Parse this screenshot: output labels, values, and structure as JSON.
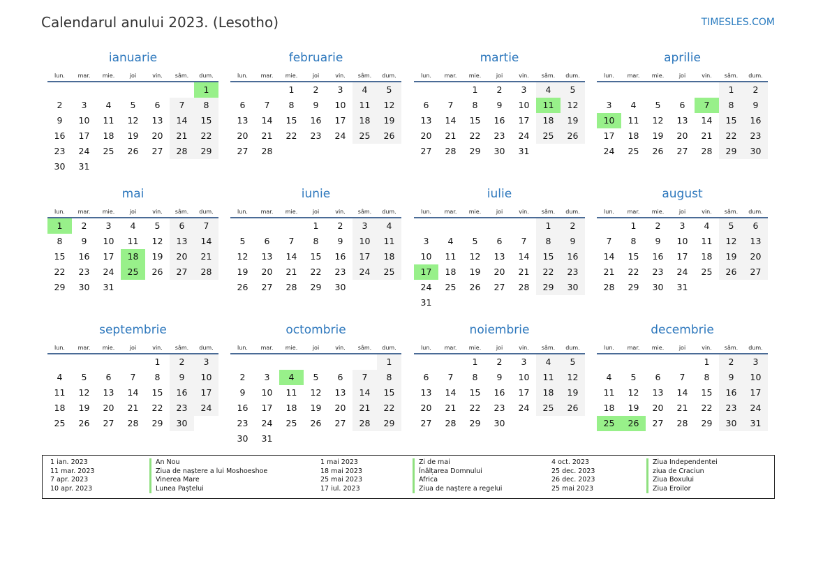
{
  "header": {
    "title": "Calendarul anului 2023. (Lesotho)",
    "brand": "TIMESLES.COM"
  },
  "year": 2023,
  "weekdays": [
    "lun.",
    "mar.",
    "mie.",
    "joi",
    "vin.",
    "sâm.",
    "dum."
  ],
  "months": [
    {
      "name": "ianuarie",
      "days": 31,
      "holidays": [
        1
      ]
    },
    {
      "name": "februarie",
      "days": 28,
      "holidays": []
    },
    {
      "name": "martie",
      "days": 31,
      "holidays": [
        11
      ]
    },
    {
      "name": "aprilie",
      "days": 30,
      "holidays": [
        7,
        10
      ]
    },
    {
      "name": "mai",
      "days": 31,
      "holidays": [
        1,
        18,
        25
      ]
    },
    {
      "name": "iunie",
      "days": 30,
      "holidays": []
    },
    {
      "name": "iulie",
      "days": 31,
      "holidays": [
        17
      ]
    },
    {
      "name": "august",
      "days": 31,
      "holidays": []
    },
    {
      "name": "septembrie",
      "days": 30,
      "holidays": []
    },
    {
      "name": "octombrie",
      "days": 31,
      "holidays": [
        4
      ]
    },
    {
      "name": "noiembrie",
      "days": 30,
      "holidays": []
    },
    {
      "name": "decembrie",
      "days": 31,
      "holidays": [
        25,
        26
      ]
    }
  ],
  "colors": {
    "holiday": "#98f08a",
    "weekend": "#f3f3f3",
    "month_title": "#2e78bd"
  },
  "legend": [
    [
      {
        "date": "1 ian. 2023",
        "name": "An Nou"
      },
      {
        "date": "11 mar. 2023",
        "name": "Ziua de naștere a lui Moshoeshoe"
      },
      {
        "date": "7 apr. 2023",
        "name": "Vinerea Mare"
      },
      {
        "date": "10 apr. 2023",
        "name": "Lunea Paștelui"
      }
    ],
    [
      {
        "date": "1 mai 2023",
        "name": "Zi de mai"
      },
      {
        "date": "18 mai 2023",
        "name": "Înălțarea Domnului"
      },
      {
        "date": "25 mai 2023",
        "name": "Africa"
      },
      {
        "date": "17 iul. 2023",
        "name": "Ziua de naștere a regelui"
      }
    ],
    [
      {
        "date": "4 oct. 2023",
        "name": "Ziua Independentei"
      },
      {
        "date": "25 dec. 2023",
        "name": "ziua de Craciun"
      },
      {
        "date": "26 dec. 2023",
        "name": "Ziua Boxului"
      },
      {
        "date": "25 mai 2023",
        "name": "Ziua Eroilor"
      }
    ]
  ]
}
